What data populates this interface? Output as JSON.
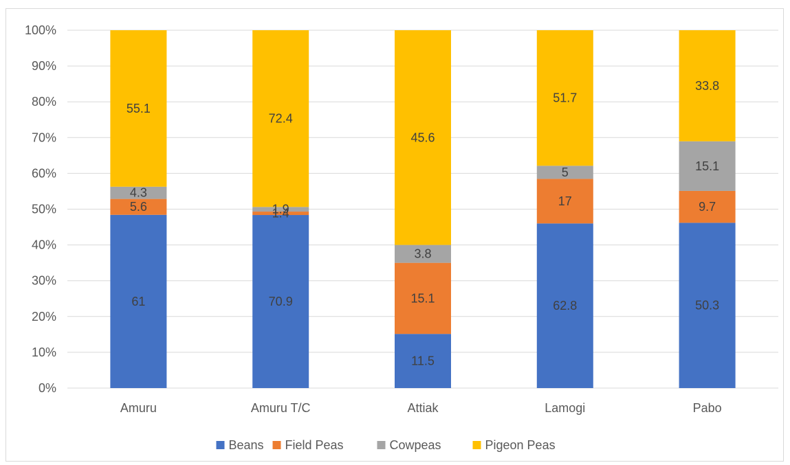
{
  "chart_data": {
    "type": "bar",
    "stacked": "percent",
    "categories": [
      "Amuru",
      "Amuru T/C",
      "Attiak",
      "Lamogi",
      "Pabo"
    ],
    "series": [
      {
        "name": "Beans",
        "color": "#4472C4",
        "values": [
          61,
          70.9,
          11.5,
          62.8,
          50.3
        ]
      },
      {
        "name": "Field Peas",
        "color": "#ED7D31",
        "values": [
          5.6,
          1.4,
          15.1,
          17,
          9.7
        ]
      },
      {
        "name": "Cowpeas",
        "color": "#A5A5A5",
        "values": [
          4.3,
          1.9,
          3.8,
          5,
          15.1
        ]
      },
      {
        "name": "Pigeon Peas",
        "color": "#FFC000",
        "values": [
          55.1,
          72.4,
          45.6,
          51.7,
          33.8
        ]
      }
    ],
    "y_ticks": [
      "0%",
      "10%",
      "20%",
      "30%",
      "40%",
      "50%",
      "60%",
      "70%",
      "80%",
      "90%",
      "100%"
    ],
    "ylim": [
      0,
      100
    ],
    "grid": true,
    "legend_position": "bottom",
    "title": "",
    "xlabel": "",
    "ylabel": ""
  }
}
